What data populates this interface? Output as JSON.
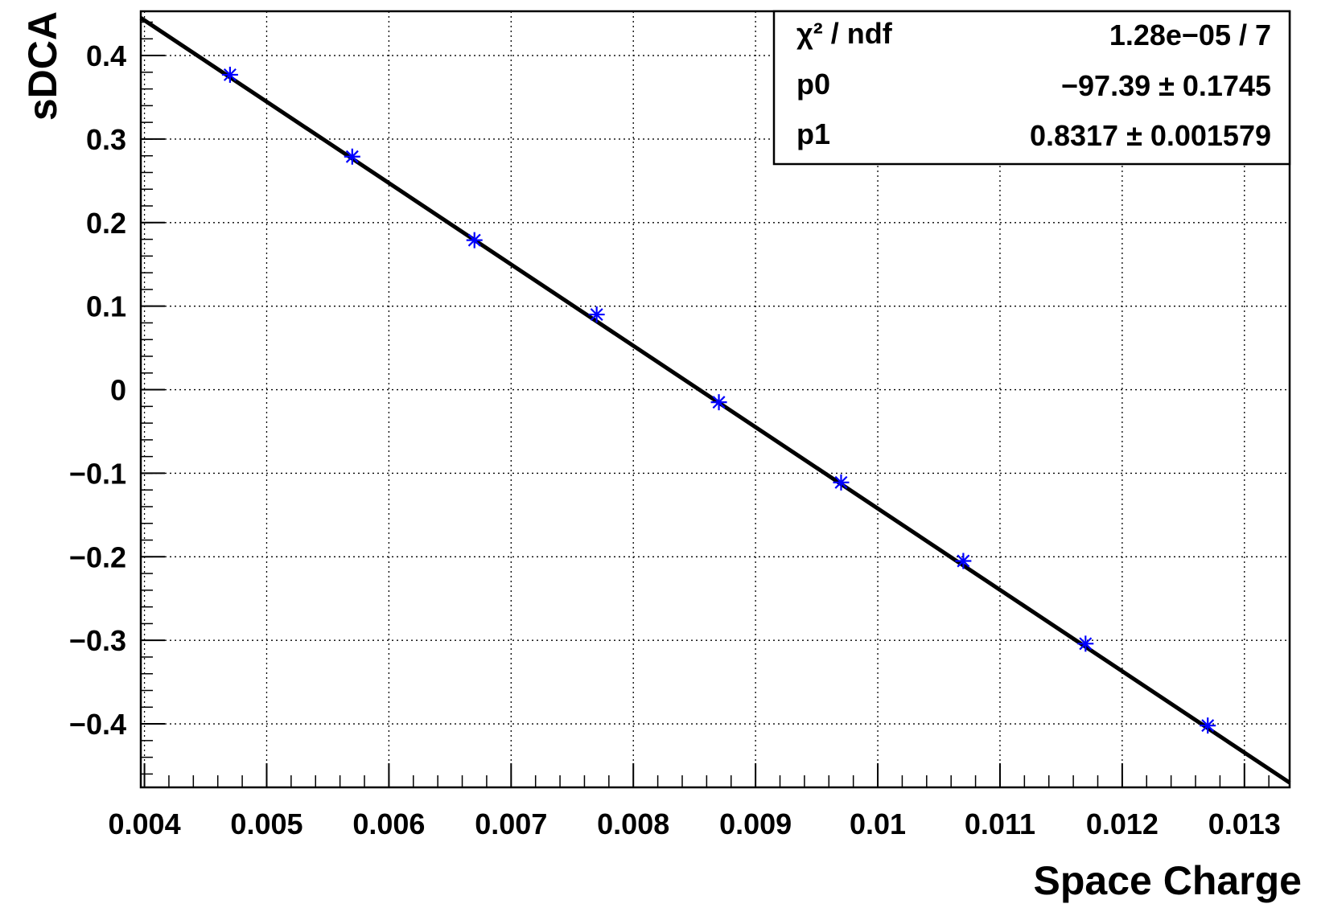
{
  "chart_data": {
    "type": "scatter",
    "title": "",
    "xlabel": "Space Charge",
    "ylabel": "sDCA",
    "xlim": [
      0.00397,
      0.01337
    ],
    "ylim": [
      -0.476,
      0.453
    ],
    "grid": true,
    "x_ticks": [
      {
        "value": 0.004,
        "label": "0.004"
      },
      {
        "value": 0.005,
        "label": "0.005"
      },
      {
        "value": 0.006,
        "label": "0.006"
      },
      {
        "value": 0.007,
        "label": "0.007"
      },
      {
        "value": 0.008,
        "label": "0.008"
      },
      {
        "value": 0.009,
        "label": "0.009"
      },
      {
        "value": 0.01,
        "label": "0.01"
      },
      {
        "value": 0.011,
        "label": "0.011"
      },
      {
        "value": 0.012,
        "label": "0.012"
      },
      {
        "value": 0.013,
        "label": "0.013"
      }
    ],
    "y_ticks": [
      {
        "value": 0.4,
        "label": "0.4"
      },
      {
        "value": 0.3,
        "label": "0.3"
      },
      {
        "value": 0.2,
        "label": "0.2"
      },
      {
        "value": 0.1,
        "label": "0.1"
      },
      {
        "value": 0.0,
        "label": "0"
      },
      {
        "value": -0.1,
        "label": "−0.1"
      },
      {
        "value": -0.2,
        "label": "−0.2"
      },
      {
        "value": -0.3,
        "label": "−0.3"
      },
      {
        "value": -0.4,
        "label": "−0.4"
      }
    ],
    "series": [
      {
        "marker": "asterisk",
        "color": "#0000ff",
        "points": [
          {
            "x": 0.0047,
            "y": 0.377
          },
          {
            "x": 0.0057,
            "y": 0.279
          },
          {
            "x": 0.0067,
            "y": 0.179
          },
          {
            "x": 0.0077,
            "y": 0.09
          },
          {
            "x": 0.0087,
            "y": -0.015
          },
          {
            "x": 0.0097,
            "y": -0.111
          },
          {
            "x": 0.0107,
            "y": -0.205
          },
          {
            "x": 0.0117,
            "y": -0.304
          },
          {
            "x": 0.0127,
            "y": -0.402
          }
        ]
      }
    ],
    "fit_line": {
      "color": "#000000",
      "x_range": [
        0.00397,
        0.01337
      ],
      "p0": -97.39,
      "p1": 0.8317
    },
    "stats_box": {
      "placement": "top-right",
      "rows": [
        {
          "name": "χ² / ndf",
          "value": "1.28e−05 / 7"
        },
        {
          "name": "p0",
          "value": "−97.39 ± 0.1745"
        },
        {
          "name": "p1",
          "value": "0.8317 ± 0.001579"
        }
      ]
    }
  }
}
